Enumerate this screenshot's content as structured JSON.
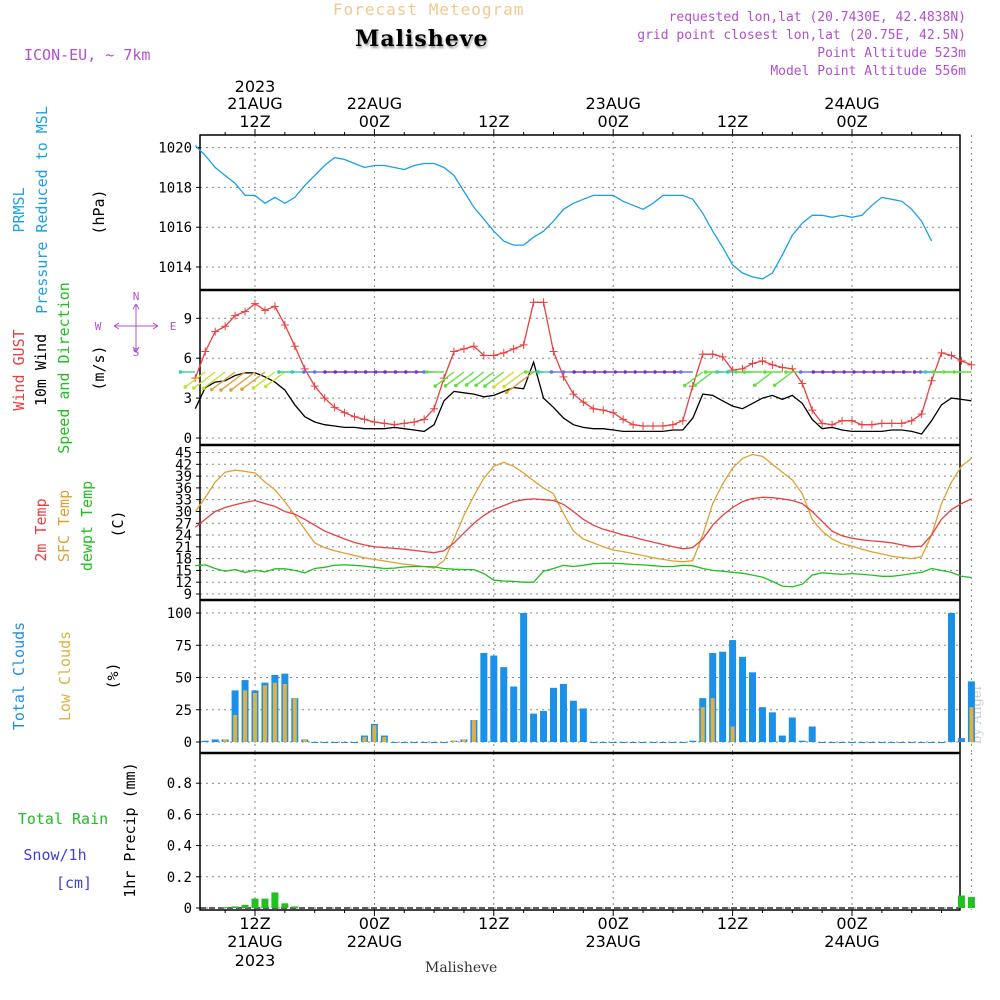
{
  "header": {
    "subtitle": "Forecast Meteogram",
    "title": "Malisheve",
    "model": "ICON-EU, ~ 7km",
    "info": [
      "requested lon,lat (20.7430E, 42.4838N)",
      "grid point closest lon,lat (20.75E, 42.5N)",
      "Point Altitude 523m",
      "Model Point Altitude 556m"
    ]
  },
  "footer": {
    "location": "Malisheve",
    "credit": "by Angel"
  },
  "colors": {
    "pressure": "#1aa0e8",
    "gust": "#e84040",
    "wind": "#000000",
    "temp2m": "#e84040",
    "sfc": "#e0a030",
    "dewpt": "#20c020",
    "total_clouds": "#1a90e8",
    "low_clouds": "#e0b040",
    "rain": "#20c020",
    "snow": "#4040e0",
    "text_purple": "#b050d0"
  },
  "time_axis": {
    "top": [
      {
        "h": 12,
        "l1": "2023",
        "l2": "21AUG",
        "l3": "12Z"
      },
      {
        "h": 24,
        "l2": "22AUG",
        "l3": "00Z"
      },
      {
        "h": 36,
        "l3": "12Z"
      },
      {
        "h": 48,
        "l2": "23AUG",
        "l3": "00Z"
      },
      {
        "h": 60,
        "l3": "12Z"
      },
      {
        "h": 72,
        "l2": "24AUG",
        "l3": "00Z"
      }
    ],
    "bottom": [
      {
        "h": 12,
        "l1": "12Z",
        "l2": "21AUG",
        "l3": "2023"
      },
      {
        "h": 24,
        "l1": "00Z",
        "l2": "22AUG"
      },
      {
        "h": 36,
        "l1": "12Z"
      },
      {
        "h": 48,
        "l1": "00Z",
        "l2": "23AUG"
      },
      {
        "h": 60,
        "l1": "12Z"
      },
      {
        "h": 72,
        "l1": "00Z",
        "l2": "24AUG"
      }
    ]
  },
  "panels": {
    "pressure": {
      "labels": [
        "PRMSL",
        "Pressure Reduced to MSL"
      ],
      "unit": "(hPa)"
    },
    "wind": {
      "labels": [
        "Wind GUST",
        "10m Wind",
        "Speed and Direction"
      ],
      "unit": "(m/s)",
      "compass": {
        "n": "N",
        "s": "S",
        "w": "W",
        "e": "E"
      }
    },
    "temp": {
      "labels": [
        "2m Temp",
        "SFC Temp",
        "dewpt Temp"
      ],
      "unit": "(C)"
    },
    "clouds": {
      "labels": [
        "Total Clouds",
        "Low Clouds"
      ],
      "unit": "(%)"
    },
    "precip": {
      "labels": [
        "Total  Rain",
        "Snow/1h",
        "[cm]",
        "1hr Precip (mm)"
      ]
    }
  },
  "chart_data": [
    {
      "type": "line",
      "title": "PRMSL Pressure Reduced to MSL",
      "ylabel": "(hPa)",
      "ylim": [
        1013,
        1021
      ],
      "yticks": [
        1014,
        1016,
        1018,
        1020
      ],
      "x_hours": [
        6,
        7,
        8,
        9,
        10,
        11,
        12,
        13,
        14,
        15,
        16,
        17,
        18,
        19,
        20,
        21,
        22,
        23,
        24,
        25,
        26,
        27,
        28,
        29,
        30,
        31,
        32,
        33,
        34,
        35,
        36,
        37,
        38,
        39,
        40,
        41,
        42,
        43,
        44,
        45,
        46,
        47,
        48,
        49,
        50,
        51,
        52,
        53,
        54,
        55,
        56,
        57,
        58,
        59,
        60,
        61,
        62,
        63,
        64,
        65,
        66,
        67,
        68,
        69,
        70,
        71,
        72,
        73,
        74,
        75,
        76,
        77,
        78,
        79,
        80,
        81,
        82,
        83,
        84
      ],
      "series": [
        {
          "name": "PRMSL",
          "values": [
            1020.1,
            1019.6,
            1019.0,
            1018.6,
            1018.2,
            1017.6,
            1017.6,
            1017.2,
            1017.5,
            1017.2,
            1017.5,
            1018.1,
            1018.6,
            1019.1,
            1019.5,
            1019.4,
            1019.2,
            1019.0,
            1019.1,
            1019.1,
            1019.0,
            1018.9,
            1019.1,
            1019.2,
            1019.2,
            1019.0,
            1018.6,
            1017.8,
            1017.0,
            1016.4,
            1015.8,
            1015.3,
            1015.1,
            1015.1,
            1015.5,
            1015.8,
            1016.3,
            1016.9,
            1017.2,
            1017.4,
            1017.6,
            1017.6,
            1017.6,
            1017.3,
            1017.1,
            1016.9,
            1017.2,
            1017.6,
            1017.6,
            1017.6,
            1017.4,
            1016.7,
            1015.8,
            1015.0,
            1014.1,
            1013.7,
            1013.5,
            1013.4,
            1013.7,
            1014.6,
            1015.6,
            1016.2,
            1016.6,
            1016.6,
            1016.5,
            1016.6,
            1016.5,
            1016.6,
            1017.1,
            1017.5,
            1017.4,
            1017.3,
            1016.9,
            1016.3,
            1015.3
          ]
        }
      ]
    },
    {
      "type": "line",
      "title": "Wind GUST / 10m Wind Speed and Direction",
      "ylabel": "(m/s)",
      "ylim": [
        0,
        11
      ],
      "yticks": [
        0,
        3,
        6,
        9
      ],
      "x_hours": [
        6,
        7,
        8,
        9,
        10,
        11,
        12,
        13,
        14,
        15,
        16,
        17,
        18,
        19,
        20,
        21,
        22,
        23,
        24,
        25,
        26,
        27,
        28,
        29,
        30,
        31,
        32,
        33,
        34,
        35,
        36,
        37,
        38,
        39,
        40,
        41,
        42,
        43,
        44,
        45,
        46,
        47,
        48,
        49,
        50,
        51,
        52,
        53,
        54,
        55,
        56,
        57,
        58,
        59,
        60,
        61,
        62,
        63,
        64,
        65,
        66,
        67,
        68,
        69,
        70,
        71,
        72,
        73,
        74,
        75,
        76,
        77,
        78,
        79,
        80,
        81,
        82,
        83,
        84
      ],
      "series": [
        {
          "name": "Wind GUST",
          "values": [
            4.5,
            6.5,
            8.0,
            8.4,
            9.2,
            9.5,
            10.1,
            9.6,
            9.9,
            8.5,
            6.9,
            5.2,
            3.9,
            3.0,
            2.3,
            1.9,
            1.6,
            1.4,
            1.2,
            1.1,
            1.0,
            1.1,
            1.2,
            1.4,
            2.2,
            4.5,
            6.5,
            6.7,
            6.9,
            6.2,
            6.2,
            6.4,
            6.7,
            7.0,
            10.2,
            10.2,
            6.5,
            4.6,
            3.3,
            2.7,
            2.2,
            2.1,
            1.9,
            1.4,
            1.0,
            0.9,
            0.9,
            0.9,
            1.0,
            1.3,
            3.9,
            6.3,
            6.3,
            6.1,
            5.1,
            5.2,
            5.6,
            5.8,
            5.5,
            5.3,
            5.2,
            4.1,
            2.1,
            1.1,
            1.0,
            1.3,
            1.3,
            1.0,
            1.0,
            1.1,
            1.1,
            1.1,
            1.3,
            1.8,
            4.3,
            6.4,
            6.2,
            5.8,
            5.5
          ]
        },
        {
          "name": "10m Wind",
          "values": [
            2.2,
            3.8,
            4.2,
            4.3,
            4.7,
            4.9,
            4.9,
            4.6,
            4.2,
            3.6,
            2.5,
            1.6,
            1.2,
            1.0,
            0.9,
            0.8,
            0.8,
            0.7,
            0.7,
            0.7,
            0.8,
            0.7,
            0.6,
            0.5,
            1.0,
            2.8,
            3.5,
            3.4,
            3.3,
            3.1,
            3.2,
            3.5,
            3.8,
            3.7,
            5.7,
            3.0,
            2.3,
            1.5,
            1.0,
            0.8,
            0.7,
            0.7,
            0.6,
            0.5,
            0.5,
            0.5,
            0.5,
            0.5,
            0.6,
            0.6,
            1.5,
            3.3,
            3.2,
            2.8,
            2.4,
            2.2,
            2.6,
            3.0,
            3.2,
            2.9,
            3.2,
            2.6,
            1.4,
            0.7,
            0.8,
            0.6,
            0.5,
            0.5,
            0.5,
            0.5,
            0.6,
            0.6,
            0.5,
            0.3,
            1.3,
            2.5,
            3.0,
            2.9,
            2.8
          ]
        }
      ]
    },
    {
      "type": "line",
      "title": "2m Temp / SFC Temp / dewpt Temp",
      "ylabel": "(C)",
      "ylim": [
        8,
        46
      ],
      "yticks": [
        9,
        12,
        15,
        18,
        21,
        24,
        27,
        30,
        33,
        36,
        39,
        42,
        45
      ],
      "x_hours": [
        6,
        7,
        8,
        9,
        10,
        11,
        12,
        13,
        14,
        15,
        16,
        17,
        18,
        19,
        20,
        21,
        22,
        23,
        24,
        25,
        26,
        27,
        28,
        29,
        30,
        31,
        32,
        33,
        34,
        35,
        36,
        37,
        38,
        39,
        40,
        41,
        42,
        43,
        44,
        45,
        46,
        47,
        48,
        49,
        50,
        51,
        52,
        53,
        54,
        55,
        56,
        57,
        58,
        59,
        60,
        61,
        62,
        63,
        64,
        65,
        66,
        67,
        68,
        69,
        70,
        71,
        72,
        73,
        74,
        75,
        76,
        77,
        78,
        79,
        80,
        81,
        82,
        83,
        84
      ],
      "series": [
        {
          "name": "2m Temp",
          "values": [
            26.0,
            28.0,
            30.0,
            31.0,
            31.7,
            32.3,
            32.8,
            32.0,
            31.3,
            30.0,
            29.3,
            28.0,
            26.5,
            25.0,
            24.0,
            23.0,
            22.1,
            21.5,
            21.0,
            20.8,
            20.6,
            20.4,
            20.1,
            19.8,
            19.5,
            20.0,
            22.0,
            24.5,
            27.0,
            29.0,
            30.5,
            31.5,
            32.5,
            33.0,
            33.2,
            33.0,
            32.8,
            31.8,
            30.0,
            28.0,
            26.5,
            25.5,
            24.8,
            24.0,
            23.5,
            22.8,
            22.2,
            21.6,
            21.0,
            20.5,
            20.8,
            23.0,
            26.5,
            29.0,
            31.0,
            32.5,
            33.3,
            33.6,
            33.5,
            33.2,
            32.8,
            32.0,
            30.0,
            27.5,
            25.0,
            23.8,
            23.2,
            22.8,
            22.5,
            22.3,
            22.0,
            21.5,
            21.0,
            21.2,
            24.0,
            28.0,
            30.5,
            32.0,
            33.2
          ]
        },
        {
          "name": "SFC Temp",
          "values": [
            30.0,
            33.5,
            37.5,
            40.0,
            40.5,
            40.2,
            39.8,
            37.5,
            35.5,
            32.5,
            29.0,
            25.5,
            22.0,
            20.8,
            20.0,
            19.4,
            18.8,
            18.2,
            17.8,
            17.4,
            17.0,
            16.6,
            16.3,
            16.0,
            15.6,
            17.5,
            23.0,
            29.0,
            34.0,
            38.5,
            41.5,
            42.5,
            41.5,
            39.8,
            37.8,
            36.0,
            34.5,
            29.5,
            25.0,
            23.0,
            22.0,
            21.0,
            20.2,
            19.8,
            19.3,
            18.8,
            18.2,
            17.8,
            17.4,
            17.2,
            17.5,
            24.0,
            32.0,
            37.0,
            41.0,
            43.5,
            44.5,
            44.0,
            42.0,
            40.0,
            38.0,
            34.5,
            28.0,
            25.0,
            23.0,
            21.8,
            21.2,
            20.4,
            19.7,
            19.2,
            18.6,
            18.3,
            18.0,
            18.5,
            24.0,
            32.0,
            37.5,
            41.5,
            43.5
          ]
        },
        {
          "name": "dewpt Temp",
          "values": [
            16.2,
            16.4,
            15.5,
            14.8,
            15.2,
            14.5,
            15.1,
            14.6,
            15.4,
            15.4,
            15.0,
            14.4,
            15.5,
            15.8,
            16.3,
            16.4,
            16.3,
            16.1,
            15.8,
            15.5,
            15.6,
            15.9,
            16.0,
            16.0,
            15.9,
            15.5,
            15.3,
            15.2,
            15.2,
            14.2,
            12.5,
            12.3,
            12.2,
            12.0,
            12.0,
            14.8,
            15.5,
            16.3,
            16.0,
            16.3,
            16.7,
            16.8,
            16.8,
            16.7,
            16.5,
            16.4,
            16.2,
            16.0,
            16.0,
            16.3,
            16.2,
            15.5,
            15.0,
            14.8,
            14.5,
            14.3,
            13.8,
            13.3,
            12.2,
            11.0,
            10.8,
            11.5,
            13.8,
            14.4,
            14.2,
            14.0,
            14.2,
            14.0,
            13.8,
            13.5,
            13.5,
            13.8,
            14.2,
            14.5,
            15.5,
            15.0,
            14.5,
            13.5,
            13.2
          ]
        }
      ]
    },
    {
      "type": "bar",
      "title": "Total Clouds / Low Clouds",
      "ylabel": "(%)",
      "ylim": [
        0,
        100
      ],
      "yticks": [
        0,
        25,
        50,
        75,
        100
      ],
      "x_hours": [
        7,
        8,
        9,
        10,
        11,
        12,
        13,
        14,
        15,
        16,
        17,
        18,
        19,
        20,
        21,
        22,
        23,
        24,
        25,
        26,
        27,
        28,
        29,
        30,
        31,
        32,
        33,
        34,
        35,
        36,
        37,
        38,
        39,
        40,
        41,
        42,
        43,
        44,
        45,
        46,
        47,
        48,
        49,
        50,
        51,
        52,
        53,
        54,
        55,
        56,
        57,
        58,
        59,
        60,
        61,
        62,
        63,
        64,
        65,
        66,
        67,
        68,
        69,
        70,
        71,
        72,
        73,
        74,
        75,
        76,
        77,
        78,
        79,
        80,
        81,
        82,
        83,
        84
      ],
      "series": [
        {
          "name": "Total Clouds",
          "values": [
            1,
            2,
            2,
            40,
            48,
            40,
            46,
            52,
            53,
            34,
            2,
            0,
            0,
            0,
            0,
            0,
            5,
            14,
            5,
            0,
            0,
            0,
            0,
            0,
            0,
            1,
            2,
            17,
            69,
            67,
            58,
            43,
            100,
            22,
            24,
            42,
            45,
            32,
            26,
            0,
            0,
            0,
            0,
            0,
            0,
            0,
            0,
            0,
            0,
            1,
            34,
            69,
            70,
            79,
            66,
            54,
            27,
            23,
            5,
            19,
            1,
            12,
            0,
            0,
            0,
            0,
            0,
            0,
            0,
            0,
            0,
            0,
            0,
            0,
            0,
            100,
            3,
            47
          ]
        },
        {
          "name": "Low Clouds",
          "values": [
            0,
            0,
            2,
            21,
            40,
            38,
            44,
            46,
            45,
            34,
            2,
            0,
            0,
            0,
            0,
            0,
            4,
            13,
            4,
            0,
            0,
            0,
            0,
            0,
            0,
            1,
            2,
            17,
            0,
            0,
            0,
            0,
            0,
            0,
            0,
            0,
            0,
            0,
            0,
            0,
            0,
            0,
            0,
            0,
            0,
            0,
            0,
            0,
            0,
            0,
            27,
            34,
            0,
            12,
            0,
            0,
            0,
            0,
            0,
            0,
            0,
            0,
            0,
            0,
            0,
            0,
            0,
            0,
            0,
            0,
            0,
            0,
            0,
            0,
            0,
            0,
            0,
            27
          ]
        }
      ]
    },
    {
      "type": "bar",
      "title": "1hr Precip",
      "ylabel": "1hr Precip (mm)",
      "ylim": [
        0,
        1.0
      ],
      "yticks": [
        0,
        0.2,
        0.4,
        0.6,
        0.8
      ],
      "x_hours": [
        9,
        10,
        11,
        12,
        13,
        14,
        15,
        16,
        83,
        84
      ],
      "series": [
        {
          "name": "Total Rain",
          "values": [
            0.005,
            0.01,
            0.02,
            0.06,
            0.06,
            0.1,
            0.03,
            0.01,
            0.08,
            0.07
          ]
        },
        {
          "name": "Snow/1h",
          "values": [
            0,
            0,
            0,
            0,
            0,
            0,
            0,
            0,
            0,
            0
          ]
        }
      ]
    }
  ]
}
